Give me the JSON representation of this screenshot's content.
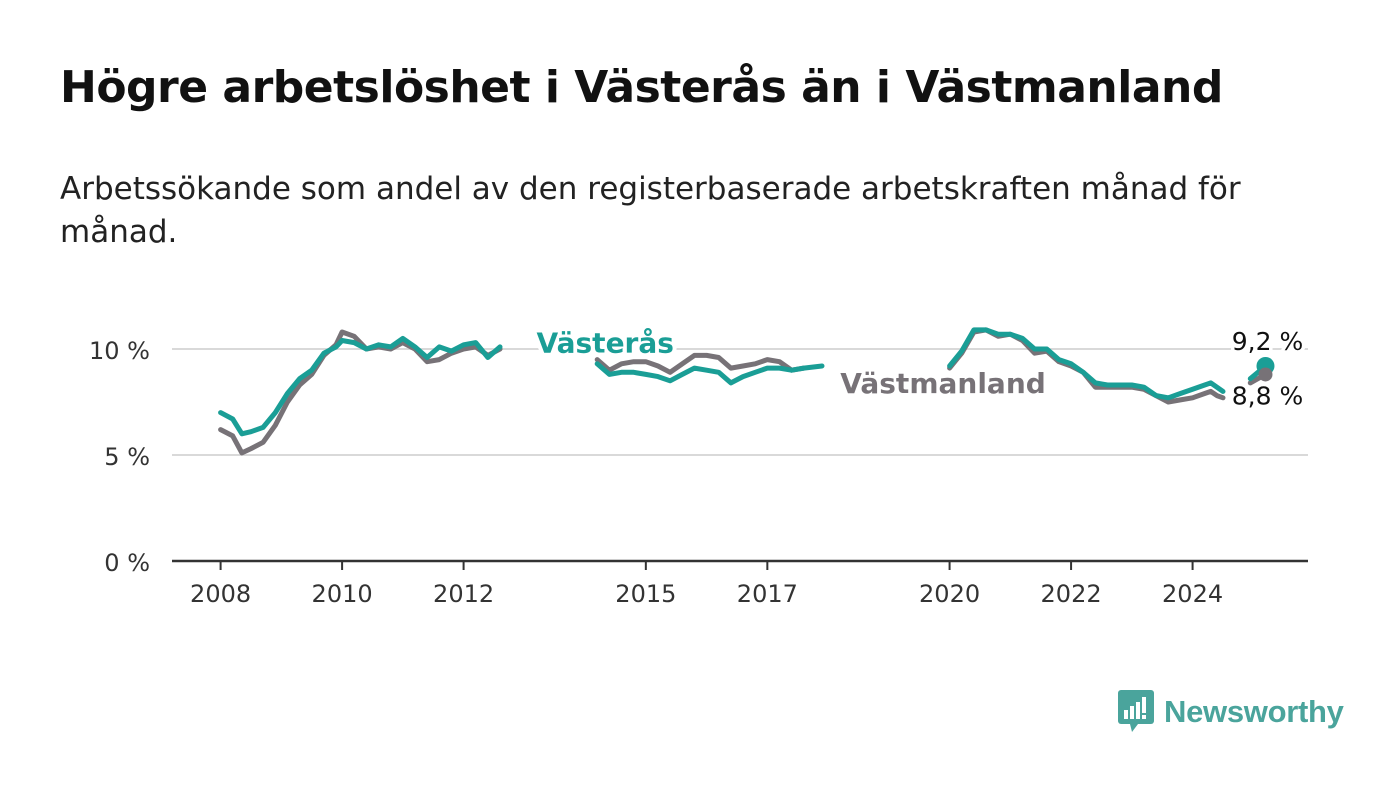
{
  "title": "Högre arbetslöshet i Västerås än i Västmanland",
  "subtitle": "Arbetssökande som andel av den registerbaserade arbetskraften månad för månad.",
  "brand": {
    "name": "Newsworthy",
    "color": "#4aa49c",
    "icon": "bar-chart-badge-icon"
  },
  "chart_data": {
    "type": "line",
    "x_unit": "year",
    "xlim": [
      2007.2,
      2025.9
    ],
    "ylim": [
      0,
      12
    ],
    "y_ticks": [
      0,
      5,
      10
    ],
    "y_tick_labels": [
      "0 %",
      "5 %",
      "10 %"
    ],
    "x_ticks": [
      2008,
      2010,
      2012,
      2015,
      2017,
      2020,
      2022,
      2024
    ],
    "x_tick_labels": [
      "2008",
      "2010",
      "2012",
      "2015",
      "2017",
      "2020",
      "2022",
      "2024"
    ],
    "grid": true,
    "series": [
      {
        "name": "Västmanland",
        "color": "#777277",
        "points": [
          [
            2008.0,
            6.2
          ],
          [
            2008.2,
            5.9
          ],
          [
            2008.35,
            5.1
          ],
          [
            2008.5,
            5.3
          ],
          [
            2008.7,
            5.6
          ],
          [
            2008.9,
            6.4
          ],
          [
            2009.1,
            7.5
          ],
          [
            2009.3,
            8.3
          ],
          [
            2009.5,
            8.8
          ],
          [
            2009.7,
            9.7
          ],
          [
            2009.9,
            10.2
          ],
          [
            2010.0,
            10.8
          ],
          [
            2010.2,
            10.6
          ],
          [
            2010.4,
            10.0
          ],
          [
            2010.6,
            10.1
          ],
          [
            2010.8,
            10.0
          ],
          [
            2011.0,
            10.3
          ],
          [
            2011.2,
            10.0
          ],
          [
            2011.4,
            9.4
          ],
          [
            2011.6,
            9.5
          ],
          [
            2011.8,
            9.8
          ],
          [
            2012.0,
            10.0
          ],
          [
            2012.2,
            10.1
          ],
          [
            2012.4,
            9.7
          ],
          [
            2012.6,
            10.0
          ],
          null,
          [
            2014.2,
            9.5
          ],
          [
            2014.4,
            9.0
          ],
          [
            2014.6,
            9.3
          ],
          [
            2014.8,
            9.4
          ],
          [
            2015.0,
            9.4
          ],
          [
            2015.2,
            9.2
          ],
          [
            2015.4,
            8.9
          ],
          [
            2015.6,
            9.3
          ],
          [
            2015.8,
            9.7
          ],
          [
            2016.0,
            9.7
          ],
          [
            2016.2,
            9.6
          ],
          [
            2016.4,
            9.1
          ],
          [
            2016.6,
            9.2
          ],
          [
            2016.8,
            9.3
          ],
          [
            2017.0,
            9.5
          ],
          [
            2017.2,
            9.4
          ],
          [
            2017.4,
            9.0
          ],
          [
            2017.6,
            9.1
          ],
          null,
          [
            2020.0,
            9.1
          ],
          [
            2020.2,
            9.8
          ],
          [
            2020.4,
            10.8
          ],
          [
            2020.6,
            10.9
          ],
          [
            2020.8,
            10.6
          ],
          [
            2021.0,
            10.7
          ],
          [
            2021.2,
            10.4
          ],
          [
            2021.4,
            9.8
          ],
          [
            2021.6,
            9.9
          ],
          [
            2021.8,
            9.4
          ],
          [
            2022.0,
            9.2
          ],
          [
            2022.2,
            8.9
          ],
          [
            2022.4,
            8.2
          ],
          [
            2022.6,
            8.2
          ],
          [
            2022.8,
            8.2
          ],
          [
            2023.0,
            8.2
          ],
          [
            2023.2,
            8.1
          ],
          [
            2023.4,
            7.8
          ],
          [
            2023.6,
            7.5
          ],
          [
            2023.8,
            7.6
          ],
          [
            2024.0,
            7.7
          ],
          [
            2024.2,
            7.9
          ],
          [
            2024.3,
            8.0
          ],
          [
            2024.4,
            7.8
          ],
          [
            2024.5,
            7.7
          ],
          null,
          [
            2024.95,
            8.4
          ],
          [
            2025.2,
            8.8
          ]
        ]
      },
      {
        "name": "Västerås",
        "color": "#1a9e96",
        "points": [
          [
            2008.0,
            7.0
          ],
          [
            2008.2,
            6.7
          ],
          [
            2008.35,
            6.0
          ],
          [
            2008.5,
            6.1
          ],
          [
            2008.7,
            6.3
          ],
          [
            2008.9,
            7.0
          ],
          [
            2009.1,
            7.9
          ],
          [
            2009.3,
            8.6
          ],
          [
            2009.5,
            9.0
          ],
          [
            2009.7,
            9.8
          ],
          [
            2009.9,
            10.1
          ],
          [
            2010.0,
            10.4
          ],
          [
            2010.2,
            10.3
          ],
          [
            2010.4,
            10.0
          ],
          [
            2010.6,
            10.2
          ],
          [
            2010.8,
            10.1
          ],
          [
            2011.0,
            10.5
          ],
          [
            2011.2,
            10.1
          ],
          [
            2011.4,
            9.6
          ],
          [
            2011.6,
            10.1
          ],
          [
            2011.8,
            9.9
          ],
          [
            2012.0,
            10.2
          ],
          [
            2012.2,
            10.3
          ],
          [
            2012.4,
            9.6
          ],
          [
            2012.6,
            10.1
          ],
          null,
          [
            2014.2,
            9.3
          ],
          [
            2014.4,
            8.8
          ],
          [
            2014.6,
            8.9
          ],
          [
            2014.8,
            8.9
          ],
          [
            2015.0,
            8.8
          ],
          [
            2015.2,
            8.7
          ],
          [
            2015.4,
            8.5
          ],
          [
            2015.6,
            8.8
          ],
          [
            2015.8,
            9.1
          ],
          [
            2016.0,
            9.0
          ],
          [
            2016.2,
            8.9
          ],
          [
            2016.4,
            8.4
          ],
          [
            2016.6,
            8.7
          ],
          [
            2016.8,
            8.9
          ],
          [
            2017.0,
            9.1
          ],
          [
            2017.2,
            9.1
          ],
          [
            2017.4,
            9.0
          ],
          [
            2017.6,
            9.1
          ],
          [
            2017.9,
            9.2
          ],
          null,
          [
            2020.0,
            9.2
          ],
          [
            2020.2,
            9.9
          ],
          [
            2020.4,
            10.9
          ],
          [
            2020.6,
            10.9
          ],
          [
            2020.8,
            10.7
          ],
          [
            2021.0,
            10.7
          ],
          [
            2021.2,
            10.5
          ],
          [
            2021.4,
            10.0
          ],
          [
            2021.6,
            10.0
          ],
          [
            2021.8,
            9.5
          ],
          [
            2022.0,
            9.3
          ],
          [
            2022.2,
            8.9
          ],
          [
            2022.4,
            8.4
          ],
          [
            2022.6,
            8.3
          ],
          [
            2022.8,
            8.3
          ],
          [
            2023.0,
            8.3
          ],
          [
            2023.2,
            8.2
          ],
          [
            2023.4,
            7.8
          ],
          [
            2023.6,
            7.7
          ],
          [
            2023.8,
            7.9
          ],
          [
            2024.0,
            8.1
          ],
          [
            2024.2,
            8.3
          ],
          [
            2024.3,
            8.4
          ],
          [
            2024.4,
            8.2
          ],
          [
            2024.5,
            8.0
          ],
          null,
          [
            2024.95,
            8.6
          ],
          [
            2025.2,
            9.2
          ]
        ]
      }
    ],
    "series_labels": [
      {
        "text": "Västerås",
        "series": 1,
        "x": 2013.2,
        "y": 10.3
      },
      {
        "text": "Västmanland",
        "series": 0,
        "x": 2018.2,
        "y": 8.4
      }
    ],
    "end_labels": [
      {
        "text": "9,2 %",
        "series": 1,
        "x": 2025.2,
        "y": 9.2
      },
      {
        "text": "8,8 %",
        "series": 0,
        "x": 2025.2,
        "y": 8.8
      }
    ]
  }
}
